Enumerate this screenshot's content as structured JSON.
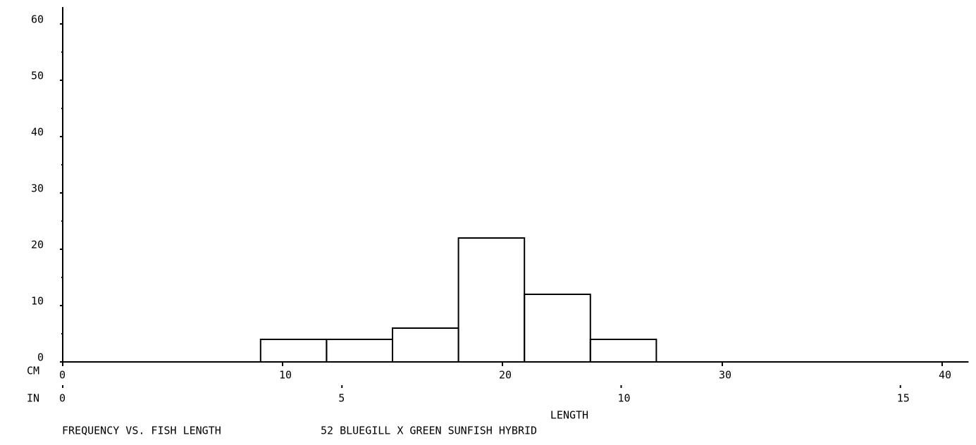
{
  "chart_data": {
    "type": "histogram",
    "title": "FREQUENCY VS. FISH LENGTH",
    "subtitle": "52 BLUEGILL X GREEN SUNFISH HYBRID",
    "xlabel": "LENGTH",
    "xunit": "CM",
    "x2unit": "IN",
    "bins": [
      9,
      12,
      15,
      18,
      21,
      24,
      27
    ],
    "counts": [
      4,
      4,
      6,
      22,
      12,
      4
    ],
    "color": "#000000",
    "xlim": [
      0,
      41.2
    ],
    "xticks": [
      0,
      10,
      20,
      30,
      40
    ],
    "x2lim": [
      0,
      16.22
    ],
    "x2ticks": [
      0,
      5,
      10,
      15
    ],
    "ylim": [
      0,
      63
    ],
    "yticks": [
      0,
      10,
      20,
      30,
      40,
      50,
      60
    ],
    "yminorticks": [
      5,
      15,
      25,
      35,
      45,
      55
    ]
  }
}
